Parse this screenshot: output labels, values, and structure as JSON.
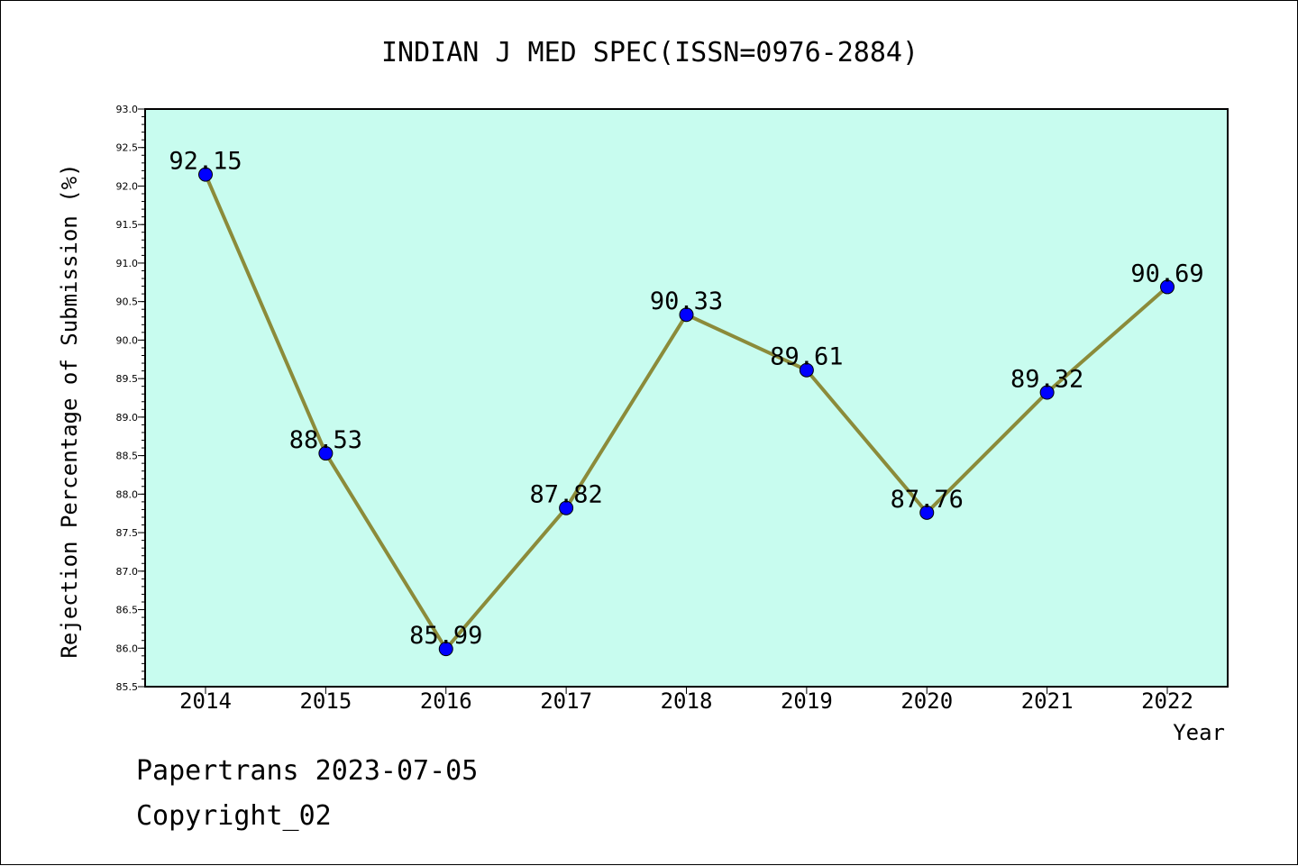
{
  "footer": {
    "line1": "Papertrans 2023-07-05",
    "line2": "Copyright_02"
  },
  "chart_data": {
    "type": "line",
    "title": "INDIAN J MED SPEC(ISSN=0976-2884)",
    "xlabel": "Year",
    "ylabel": "Rejection Percentage of Submission (%)",
    "categories": [
      "2014",
      "2015",
      "2016",
      "2017",
      "2018",
      "2019",
      "2020",
      "2021",
      "2022"
    ],
    "values": [
      92.15,
      88.53,
      85.99,
      87.82,
      90.33,
      89.61,
      87.76,
      89.32,
      90.69
    ],
    "data_labels": [
      "92.15",
      "88.53",
      "85.99",
      "87.82",
      "90.33",
      "89.61",
      "87.76",
      "89.32",
      "90.69"
    ],
    "ylim": [
      85.5,
      93.0
    ],
    "yticks": [
      "85.5",
      "86.0",
      "86.5",
      "87.0",
      "87.5",
      "88.0",
      "88.5",
      "89.0",
      "89.5",
      "90.0",
      "90.5",
      "91.0",
      "91.5",
      "92.0",
      "92.5",
      "93.0"
    ],
    "grid": false,
    "legend": "none",
    "colors": {
      "plot_background": "#c8fcef",
      "line": "#8b8b3a",
      "marker": "#0000ff"
    }
  }
}
